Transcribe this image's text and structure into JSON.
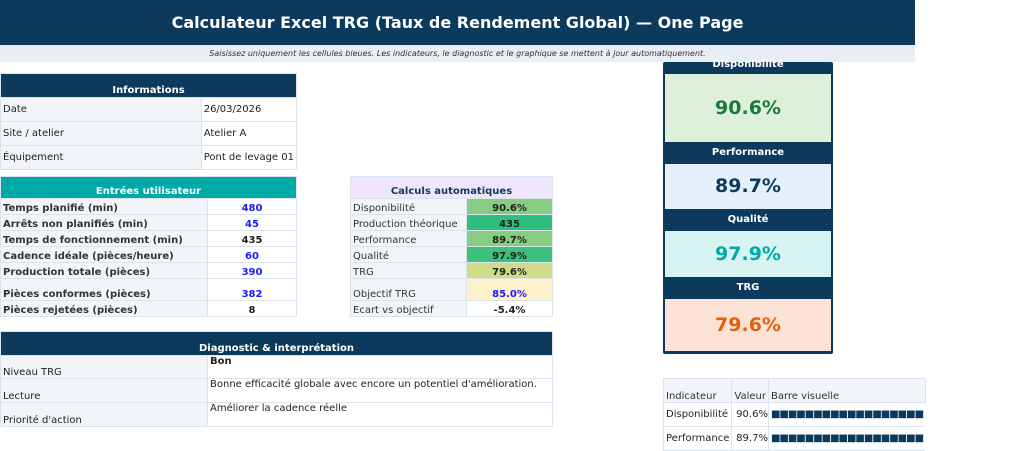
{
  "header": {
    "title": "Calculateur Excel TRG (Taux de Rendement Global) — One Page",
    "subtitle": "Saisissez uniquement les cellules bleues. Les indicateurs, le diagnostic et le graphique se mettent à jour automatiquement."
  },
  "info": {
    "title": "Informations",
    "rows": [
      {
        "label": "Date",
        "value": "26/03/2026"
      },
      {
        "label": "Site / atelier",
        "value": "Atelier A"
      },
      {
        "label": "Équipement",
        "value": "Pont de levage 01"
      }
    ]
  },
  "inputs": {
    "title": "Entrées utilisateur",
    "rows": [
      {
        "label": "Temps planifié (min)",
        "value": "480",
        "input": true
      },
      {
        "label": "Arrêts non planifiés (min)",
        "value": "45",
        "input": true
      },
      {
        "label": "Temps de fonctionnement (min)",
        "value": "435",
        "input": false
      },
      {
        "label": "Cadence idéale (pièces/heure)",
        "value": "60",
        "input": true
      },
      {
        "label": "Production totale (pièces)",
        "value": "390",
        "input": true
      },
      {
        "label": "Pièces conformes (pièces)",
        "value": "382",
        "input": true
      },
      {
        "label": "Pièces rejetées (pièces)",
        "value": "8",
        "input": false
      }
    ]
  },
  "calcs": {
    "title": "Calculs automatiques",
    "rows": [
      {
        "label": "Disponibilité",
        "value": "90.6%",
        "color": "#86cd82"
      },
      {
        "label": "Production théorique",
        "value": "435",
        "color": "#2ebf7f"
      },
      {
        "label": "Performance",
        "value": "89.7%",
        "color": "#86cd82"
      },
      {
        "label": "Qualité",
        "value": "97.9%",
        "color": "#3cc07c"
      },
      {
        "label": "TRG",
        "value": "79.6%",
        "color": "#cfdc88"
      },
      {
        "label": "Objectif TRG",
        "value": "85.0%",
        "color": "#fff1cc"
      },
      {
        "label": "Ecart vs objectif",
        "value": "-5.4%",
        "color": "#ffffff"
      }
    ]
  },
  "diag": {
    "title": "Diagnostic & interprétation",
    "rows": [
      {
        "label": "Niveau TRG",
        "value": "Bon"
      },
      {
        "label": "Lecture",
        "value": "Bonne efficacité globale avec encore un potentiel d'amélioration."
      },
      {
        "label": "Priorité d'action",
        "value": "Améliorer la cadence réelle"
      }
    ]
  },
  "kpis": [
    {
      "label": "Disponibilité",
      "value": "90.6%",
      "bg": "#dff0da",
      "fg": "#1a7a3a"
    },
    {
      "label": "Performance",
      "value": "89.7%",
      "bg": "#e6f0fb",
      "fg": "#0b3a5c"
    },
    {
      "label": "Qualité",
      "value": "97.9%",
      "bg": "#d8f4f2",
      "fg": "#00a9a5"
    },
    {
      "label": "TRG",
      "value": "79.6%",
      "bg": "#fde3d6",
      "fg": "#e0600c"
    }
  ],
  "indicators": {
    "headers": [
      "Indicateur",
      "Valeur",
      "Barre visuelle"
    ],
    "rows": [
      {
        "label": "Disponibilité",
        "value": "90.6%",
        "bar": "■■■■■■■■■■■■■■■■■■"
      },
      {
        "label": "Performance",
        "value": "89.7%",
        "bar": "■■■■■■■■■■■■■■■■■■"
      }
    ]
  }
}
